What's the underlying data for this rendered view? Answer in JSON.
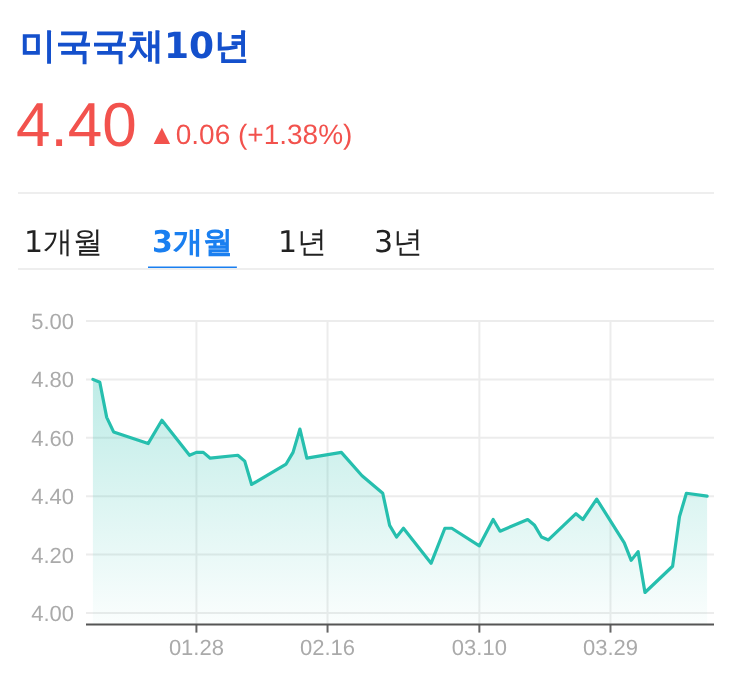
{
  "chart_data": {
    "type": "area",
    "title": "미국국채10년",
    "subtitle": "4.40",
    "annotations": [
      "▲0.06 (+1.38%)",
      "1개월",
      "3개월",
      "1년",
      "3년"
    ],
    "x": [
      "--01-13",
      "--01-14",
      "--01-15",
      "--01-16",
      "--01-21",
      "--01-23",
      "--01-27",
      "--01-28",
      "--01-29",
      "--01-30",
      "--02-03",
      "--02-04",
      "--02-05",
      "--02-10",
      "--02-11",
      "--02-12",
      "--02-13",
      "--02-18",
      "--02-21",
      "--02-24",
      "--02-25",
      "--02-26",
      "--02-27",
      "--03-03",
      "--03-05",
      "--03-06",
      "--03-10",
      "--03-12",
      "--03-13",
      "--03-17",
      "--03-18",
      "--03-19",
      "--03-20",
      "--03-24",
      "--03-25",
      "--03-27",
      "--03-31",
      "--04-01",
      "--04-02",
      "--04-03",
      "--04-07",
      "--04-08",
      "--04-09",
      "--04-12"
    ],
    "series": [
      {
        "color": "#26bfae",
        "values": [
          4.8,
          4.79,
          4.67,
          4.62,
          4.58,
          4.66,
          4.54,
          4.55,
          4.55,
          4.53,
          4.54,
          4.52,
          4.44,
          4.51,
          4.55,
          4.63,
          4.53,
          4.55,
          4.47,
          4.41,
          4.3,
          4.26,
          4.29,
          4.17,
          4.29,
          4.29,
          4.23,
          4.32,
          4.28,
          4.32,
          4.3,
          4.26,
          4.25,
          4.34,
          4.32,
          4.39,
          4.24,
          4.18,
          4.21,
          4.07,
          4.16,
          4.33,
          4.41,
          4.4
        ]
      }
    ],
    "xlim": [
      "--01-12",
      "--04-13"
    ],
    "xticks": [
      {
        "value": "--01-28",
        "label": "01.28"
      },
      {
        "value": "--02-16",
        "label": "02.16"
      },
      {
        "value": "--03-10",
        "label": "03.10"
      },
      {
        "value": "--03-29",
        "label": "03.29"
      }
    ],
    "ylim": [
      3.96,
      5.0
    ],
    "yticks": [
      {
        "value": 4,
        "label": "4.00"
      },
      {
        "value": 4.2,
        "label": "4.20"
      },
      {
        "value": 4.4,
        "label": "4.40"
      },
      {
        "value": 4.6,
        "label": "4.60"
      },
      {
        "value": 4.8,
        "label": "4.80"
      },
      {
        "value": 5,
        "label": "5.00"
      }
    ],
    "grid": true
  }
}
